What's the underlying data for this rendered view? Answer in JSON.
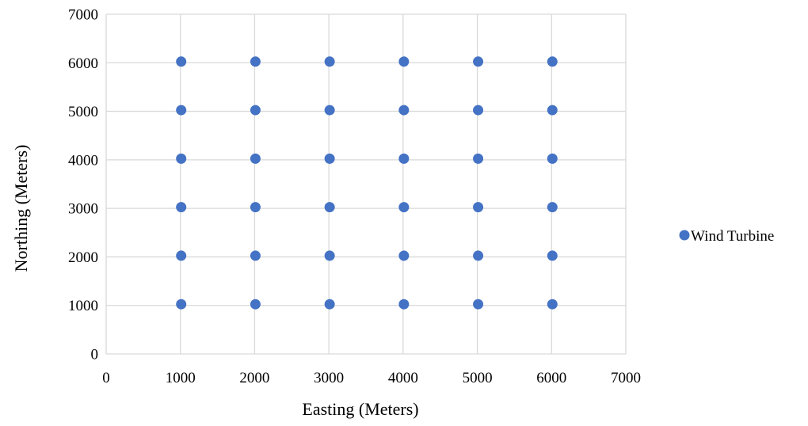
{
  "chart_data": {
    "type": "scatter",
    "title": "",
    "xlabel": "Easting (Meters)",
    "ylabel": "Northing (Meters)",
    "xlim": [
      0,
      7000
    ],
    "ylim": [
      0,
      7000
    ],
    "xticks": [
      0,
      1000,
      2000,
      3000,
      4000,
      5000,
      6000,
      7000
    ],
    "yticks": [
      0,
      1000,
      2000,
      3000,
      4000,
      5000,
      6000,
      7000
    ],
    "grid": true,
    "legend_position": "right",
    "series": [
      {
        "name": "Wind Turbine",
        "color": "#4472C4",
        "points": [
          [
            1000,
            1000
          ],
          [
            2000,
            1000
          ],
          [
            3000,
            1000
          ],
          [
            4000,
            1000
          ],
          [
            5000,
            1000
          ],
          [
            6000,
            1000
          ],
          [
            1000,
            2000
          ],
          [
            2000,
            2000
          ],
          [
            3000,
            2000
          ],
          [
            4000,
            2000
          ],
          [
            5000,
            2000
          ],
          [
            6000,
            2000
          ],
          [
            1000,
            3000
          ],
          [
            2000,
            3000
          ],
          [
            3000,
            3000
          ],
          [
            4000,
            3000
          ],
          [
            5000,
            3000
          ],
          [
            6000,
            3000
          ],
          [
            1000,
            4000
          ],
          [
            2000,
            4000
          ],
          [
            3000,
            4000
          ],
          [
            4000,
            4000
          ],
          [
            5000,
            4000
          ],
          [
            6000,
            4000
          ],
          [
            1000,
            5000
          ],
          [
            2000,
            5000
          ],
          [
            3000,
            5000
          ],
          [
            4000,
            5000
          ],
          [
            5000,
            5000
          ],
          [
            6000,
            5000
          ],
          [
            1000,
            6000
          ],
          [
            2000,
            6000
          ],
          [
            3000,
            6000
          ],
          [
            4000,
            6000
          ],
          [
            5000,
            6000
          ],
          [
            6000,
            6000
          ]
        ]
      }
    ]
  }
}
